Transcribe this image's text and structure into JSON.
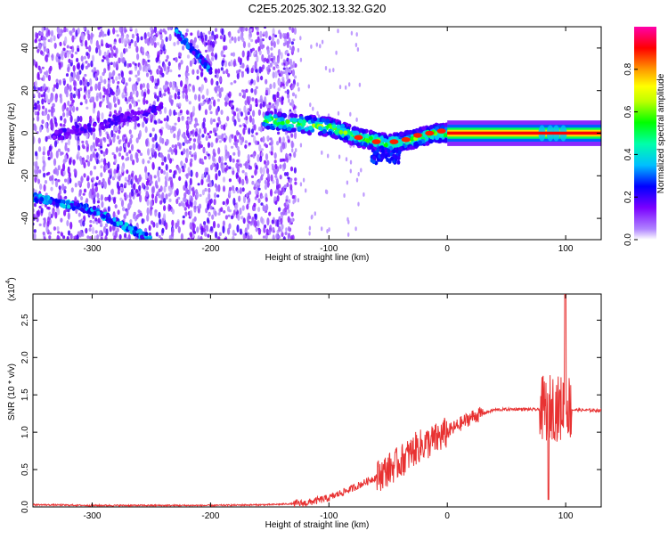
{
  "title": "C2E5.2025.302.13.32.G20",
  "chart_data": [
    {
      "type": "heatmap",
      "xlabel": "Height of straight line (km)",
      "ylabel": "Frequency (Hz)",
      "xlim": [
        -350,
        130
      ],
      "ylim": [
        -50,
        50
      ],
      "xticks": [
        -300,
        -200,
        -100,
        0,
        100
      ],
      "yticks": [
        -40,
        -20,
        0,
        20,
        40
      ],
      "colorbar": {
        "label": "Normalized spectral amplitude",
        "range": [
          0,
          1
        ],
        "ticks": [
          "0.0",
          "0.2",
          "0.4",
          "0.6",
          "0.8"
        ],
        "colors": [
          "#ffffff",
          "#7a00ff",
          "#0000ff",
          "#00ffff",
          "#00ff00",
          "#ffff00",
          "#ff8000",
          "#ff0000",
          "#ff00aa"
        ]
      },
      "features": [
        {
          "name": "descending track 1",
          "x": [
            -350,
            -300,
            -250
          ],
          "y": [
            -30,
            -36,
            -50
          ]
        },
        {
          "name": "descending track 2",
          "x": [
            -230,
            -200
          ],
          "y": [
            48,
            30
          ]
        },
        {
          "name": "main signal",
          "x": [
            -155,
            -100,
            -75,
            -50,
            -30,
            -10,
            0,
            130
          ],
          "y": [
            6,
            3,
            -2,
            -5,
            -3,
            0,
            0,
            0
          ]
        }
      ]
    },
    {
      "type": "line",
      "xlabel": "Height of straight line (km)",
      "ylabel": "SNR (10 * v/v)",
      "exponent_label": "(x10",
      "exponent_power": "4",
      "exponent_close": ")",
      "xlim": [
        -350,
        130
      ],
      "ylim": [
        0,
        2.85
      ],
      "xticks": [
        -300,
        -200,
        -100,
        0,
        100
      ],
      "yticks": [
        "0.0",
        "0.5",
        "1.0",
        "1.5",
        "2.0",
        "2.5"
      ],
      "color": "#e83232",
      "series": [
        {
          "x": [
            -350,
            -300,
            -250,
            -200,
            -150,
            -120,
            -100,
            -80,
            -60,
            -40,
            -25,
            -10,
            0,
            10,
            20,
            30,
            40,
            60,
            80,
            90,
            95,
            100,
            105,
            130
          ],
          "y": [
            0.03,
            0.02,
            0.02,
            0.02,
            0.03,
            0.05,
            0.12,
            0.25,
            0.4,
            0.6,
            0.8,
            0.9,
            1.0,
            1.1,
            1.2,
            1.25,
            1.3,
            1.31,
            1.3,
            1.35,
            1.3,
            1.4,
            1.3,
            1.29
          ]
        }
      ]
    }
  ]
}
